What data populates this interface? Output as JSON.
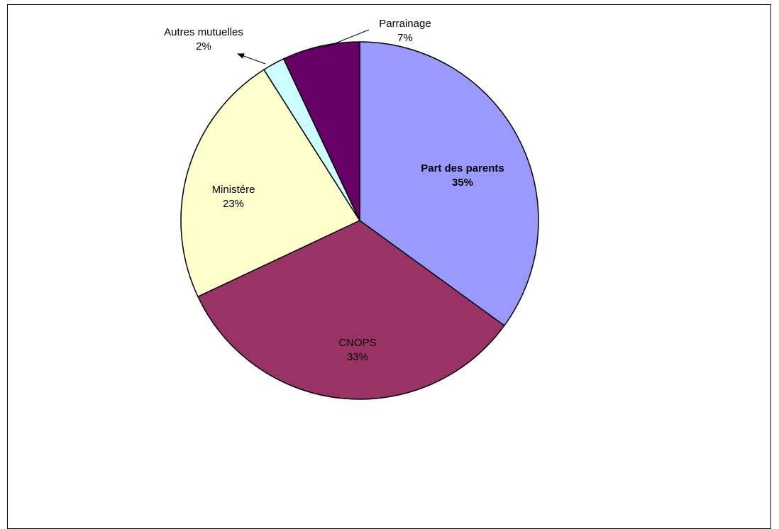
{
  "chart_data": {
    "type": "pie",
    "title": "",
    "slices": [
      {
        "label": "Part des parents",
        "value": 35,
        "value_text": "35%",
        "color": "#9999FF",
        "bold": true
      },
      {
        "label": "CNOPS",
        "value": 33,
        "value_text": "33%",
        "color": "#993366",
        "bold": false
      },
      {
        "label": "Ministére",
        "value": 23,
        "value_text": "23%",
        "color": "#FFFFCC",
        "bold": false
      },
      {
        "label": "Autres mutuelles",
        "value": 2,
        "value_text": "2%",
        "color": "#CCFFFF",
        "bold": false
      },
      {
        "label": "Parrainage",
        "value": 7,
        "value_text": "7%",
        "color": "#660066",
        "bold": false
      }
    ],
    "start_angle": "12 o'clock",
    "direction": "clockwise",
    "legend": "none"
  }
}
